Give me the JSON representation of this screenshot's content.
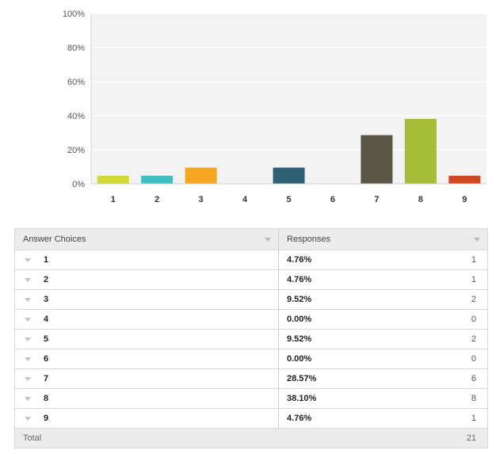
{
  "chart_data": {
    "type": "bar",
    "categories": [
      "1",
      "2",
      "3",
      "4",
      "5",
      "6",
      "7",
      "8",
      "9"
    ],
    "values": [
      4.76,
      4.76,
      9.52,
      0.0,
      9.52,
      0.0,
      28.57,
      38.1,
      4.76
    ],
    "colors": [
      "#d4d936",
      "#3fbfc2",
      "#f5a623",
      "#8b8b8b",
      "#2e5f73",
      "#8b8b8b",
      "#5b5747",
      "#a4bc36",
      "#cf4923"
    ],
    "ylim": [
      0,
      100
    ],
    "yticks": [
      "0%",
      "20%",
      "40%",
      "60%",
      "80%",
      "100%"
    ],
    "grid": true,
    "title": "",
    "xlabel": "",
    "ylabel": ""
  },
  "table": {
    "headers": {
      "choices": "Answer Choices",
      "responses": "Responses"
    },
    "rows": [
      {
        "choice": "1",
        "percent": "4.76%",
        "count": "1"
      },
      {
        "choice": "2",
        "percent": "4.76%",
        "count": "1"
      },
      {
        "choice": "3",
        "percent": "9.52%",
        "count": "2"
      },
      {
        "choice": "4",
        "percent": "0.00%",
        "count": "0"
      },
      {
        "choice": "5",
        "percent": "9.52%",
        "count": "2"
      },
      {
        "choice": "6",
        "percent": "0.00%",
        "count": "0"
      },
      {
        "choice": "7",
        "percent": "28.57%",
        "count": "6"
      },
      {
        "choice": "8",
        "percent": "38.10%",
        "count": "8"
      },
      {
        "choice": "9",
        "percent": "4.76%",
        "count": "1"
      }
    ],
    "total_label": "Total",
    "total_count": "21"
  }
}
